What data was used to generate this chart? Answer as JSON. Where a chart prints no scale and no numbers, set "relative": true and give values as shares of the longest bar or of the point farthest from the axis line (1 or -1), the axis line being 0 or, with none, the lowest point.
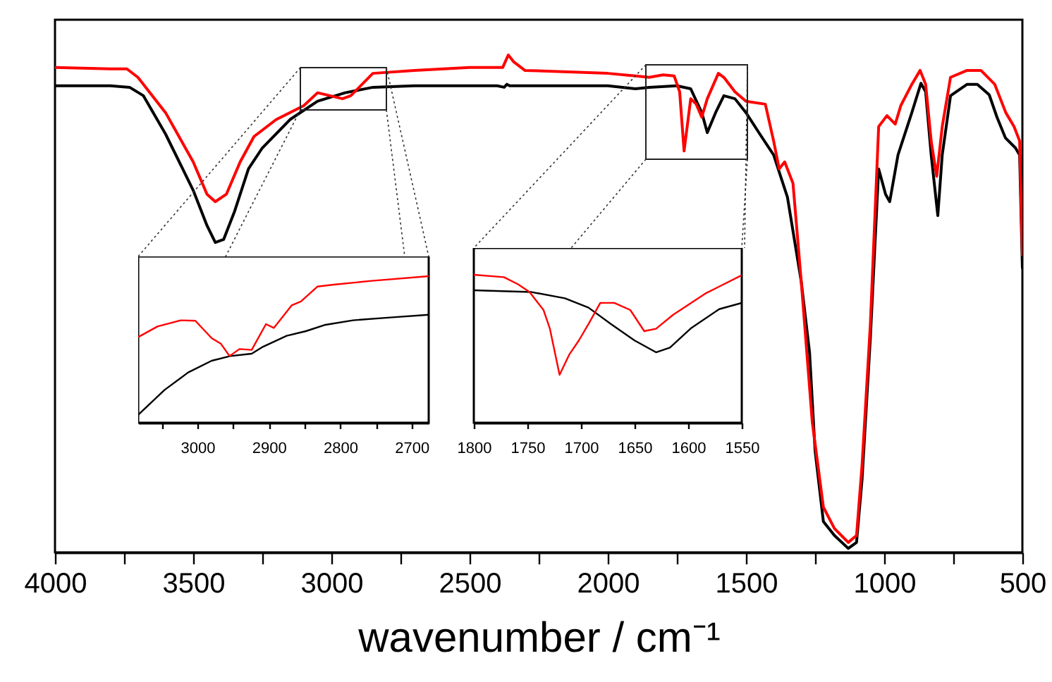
{
  "chart_data": [
    {
      "type": "line",
      "xlabel": "wavenumber / cm⁻¹",
      "relative": true,
      "xlim": [
        4000,
        500
      ],
      "xticks": [
        4000,
        {
          "value": 3750,
          "label": null
        },
        3500,
        {
          "value": 3250,
          "label": null
        },
        3000,
        {
          "value": 2750,
          "label": null
        },
        2500,
        {
          "value": 2250,
          "label": null
        },
        2000,
        {
          "value": 1750,
          "label": null
        },
        1500,
        {
          "value": 1250,
          "label": null
        },
        1000,
        {
          "value": 750,
          "label": null
        },
        500
      ],
      "series": [
        {
          "color": "#000000",
          "x": [
            4000,
            3800,
            3730,
            3680,
            3600,
            3500,
            3450,
            3420,
            3390,
            3350,
            3300,
            3250,
            3150,
            3050,
            2950,
            2850,
            2700,
            2400,
            2375,
            2365,
            2355,
            2200,
            2000,
            1900,
            1850,
            1750,
            1700,
            1660,
            1640,
            1610,
            1580,
            1540,
            1500,
            1450,
            1400,
            1350,
            1300,
            1270,
            1250,
            1220,
            1180,
            1130,
            1100,
            1080,
            1050,
            1020,
            995,
            980,
            950,
            900,
            867,
            850,
            830,
            806,
            790,
            760,
            700,
            663,
            620,
            592,
            561,
            525,
            510,
            500
          ],
          "values": [
            0.938,
            0.938,
            0.935,
            0.918,
            0.841,
            0.728,
            0.657,
            0.623,
            0.629,
            0.686,
            0.771,
            0.813,
            0.87,
            0.907,
            0.924,
            0.935,
            0.938,
            0.938,
            0.935,
            0.941,
            0.938,
            0.938,
            0.938,
            0.932,
            0.935,
            0.938,
            0.932,
            0.884,
            0.844,
            0.884,
            0.918,
            0.912,
            0.884,
            0.841,
            0.799,
            0.714,
            0.544,
            0.402,
            0.204,
            0.062,
            0.034,
            0.008,
            0.02,
            0.147,
            0.431,
            0.771,
            0.72,
            0.705,
            0.799,
            0.884,
            0.943,
            0.926,
            0.799,
            0.677,
            0.799,
            0.918,
            0.941,
            0.941,
            0.92,
            0.875,
            0.833,
            0.813,
            0.799,
            0.572
          ]
        },
        {
          "color": "#ff0000",
          "x": [
            4000,
            3800,
            3740,
            3700,
            3600,
            3500,
            3450,
            3420,
            3380,
            3330,
            3280,
            3200,
            3100,
            3050,
            2960,
            2930,
            2880,
            2850,
            2700,
            2500,
            2380,
            2360,
            2340,
            2300,
            2000,
            1900,
            1850,
            1800,
            1760,
            1740,
            1724,
            1700,
            1680,
            1660,
            1640,
            1600,
            1580,
            1540,
            1500,
            1430,
            1400,
            1380,
            1360,
            1330,
            1300,
            1260,
            1220,
            1180,
            1130,
            1100,
            1080,
            1050,
            1020,
            990,
            960,
            940,
            900,
            870,
            850,
            830,
            810,
            790,
            760,
            700,
            650,
            600,
            560,
            530,
            510,
            500
          ],
          "values": [
            0.975,
            0.972,
            0.972,
            0.955,
            0.884,
            0.785,
            0.72,
            0.705,
            0.72,
            0.785,
            0.836,
            0.87,
            0.898,
            0.924,
            0.912,
            0.918,
            0.946,
            0.963,
            0.969,
            0.975,
            0.975,
            1.0,
            0.986,
            0.969,
            0.963,
            0.958,
            0.955,
            0.96,
            0.958,
            0.926,
            0.807,
            0.912,
            0.901,
            0.875,
            0.912,
            0.963,
            0.955,
            0.926,
            0.907,
            0.901,
            0.827,
            0.771,
            0.785,
            0.742,
            0.544,
            0.261,
            0.091,
            0.048,
            0.02,
            0.034,
            0.176,
            0.459,
            0.856,
            0.878,
            0.861,
            0.898,
            0.941,
            0.969,
            0.941,
            0.827,
            0.756,
            0.856,
            0.955,
            0.969,
            0.969,
            0.941,
            0.884,
            0.856,
            0.827,
            0.598
          ]
        }
      ]
    },
    {
      "type": "line",
      "relative": true,
      "xlim": [
        3083,
        2676
      ],
      "xticks": [
        {
          "value": 3050,
          "label": null
        },
        3000,
        {
          "value": 2950,
          "label": null
        },
        2900,
        {
          "value": 2850,
          "label": null
        },
        2800,
        {
          "value": 2750,
          "label": null
        },
        2700
      ],
      "series": [
        {
          "color": "#000000",
          "x": [
            3082,
            3046,
            3013,
            2980,
            2954,
            2924,
            2908,
            2875,
            2848,
            2822,
            2782,
            2730,
            2676
          ],
          "values": [
            0.058,
            0.224,
            0.343,
            0.423,
            0.455,
            0.471,
            0.519,
            0.593,
            0.625,
            0.667,
            0.699,
            0.718,
            0.737
          ]
        },
        {
          "color": "#ff0000",
          "x": [
            3082,
            3056,
            3023,
            3003,
            2980,
            2967,
            2955,
            2941,
            2924,
            2904,
            2893,
            2868,
            2855,
            2832,
            2809,
            2756,
            2676
          ],
          "values": [
            0.587,
            0.657,
            0.699,
            0.696,
            0.577,
            0.538,
            0.455,
            0.503,
            0.497,
            0.673,
            0.647,
            0.801,
            0.827,
            0.929,
            0.942,
            0.968,
            1.0
          ]
        }
      ]
    },
    {
      "type": "line",
      "relative": true,
      "xlim": [
        1800,
        1550
      ],
      "xticks": [
        1800,
        1750,
        1700,
        1650,
        1600,
        1550
      ],
      "series": [
        {
          "color": "#000000",
          "x": [
            1800,
            1746,
            1715,
            1693,
            1672,
            1650,
            1630,
            1617,
            1597,
            1571,
            1550
          ],
          "values": [
            0.895,
            0.883,
            0.841,
            0.778,
            0.667,
            0.556,
            0.476,
            0.508,
            0.641,
            0.768,
            0.81
          ]
        },
        {
          "color": "#ff0000",
          "x": [
            1800,
            1772,
            1759,
            1748,
            1735,
            1729,
            1720,
            1711,
            1702,
            1693,
            1682,
            1669,
            1654,
            1641,
            1630,
            1614,
            1584,
            1550
          ],
          "values": [
            1.0,
            0.984,
            0.937,
            0.883,
            0.762,
            0.635,
            0.324,
            0.46,
            0.556,
            0.667,
            0.81,
            0.81,
            0.762,
            0.619,
            0.635,
            0.73,
            0.873,
            0.997
          ]
        }
      ]
    }
  ]
}
